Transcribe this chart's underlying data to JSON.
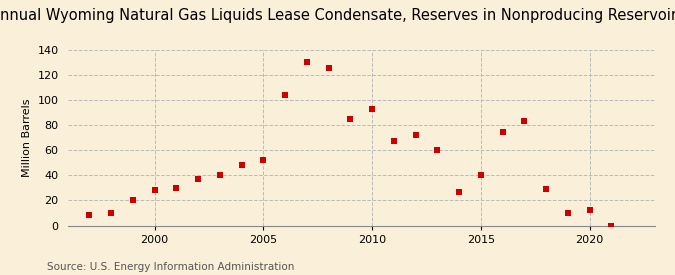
{
  "title": "Annual Wyoming Natural Gas Liquids Lease Condensate, Reserves in Nonproducing Reservoirs",
  "ylabel": "Million Barrels",
  "source": "Source: U.S. Energy Information Administration",
  "background_color": "#faefd8",
  "plot_background_color": "#faefd8",
  "marker_color": "#cc0000",
  "marker": "s",
  "marker_size": 4,
  "years": [
    1997,
    1998,
    1999,
    2000,
    2001,
    2002,
    2003,
    2004,
    2005,
    2006,
    2007,
    2008,
    2009,
    2010,
    2011,
    2012,
    2013,
    2014,
    2015,
    2016,
    2017,
    2018,
    2019,
    2020,
    2021
  ],
  "values": [
    8,
    10,
    20,
    28,
    30,
    37,
    40,
    48,
    52,
    104,
    130,
    125,
    85,
    93,
    67,
    72,
    60,
    27,
    40,
    74,
    83,
    29,
    10,
    12,
    0
  ],
  "xlim": [
    1996,
    2023
  ],
  "ylim": [
    0,
    140
  ],
  "yticks": [
    0,
    20,
    40,
    60,
    80,
    100,
    120,
    140
  ],
  "xticks": [
    2000,
    2005,
    2010,
    2015,
    2020
  ],
  "grid_color": "#bbbbbb",
  "grid_style": "--",
  "title_fontsize": 10.5,
  "label_fontsize": 8,
  "tick_fontsize": 8,
  "source_fontsize": 7.5
}
